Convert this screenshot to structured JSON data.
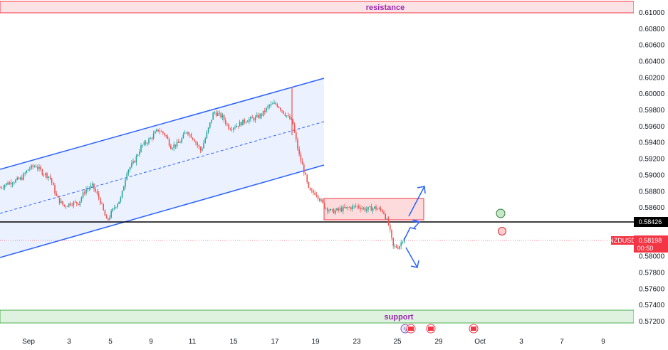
{
  "chart_data": {
    "type": "candlestick",
    "symbol": "NZDUSD",
    "last_price": "0.58198",
    "countdown": "00:50",
    "level_line": "0.58426",
    "y_ticks": [
      "0.61000",
      "0.60800",
      "0.60600",
      "0.60400",
      "0.60200",
      "0.60000",
      "0.59800",
      "0.59600",
      "0.59400",
      "0.59200",
      "0.59000",
      "0.58800",
      "0.58600",
      "0.58400",
      "0.58200",
      "0.58000",
      "0.57800",
      "0.57600",
      "0.57400",
      "0.57200"
    ],
    "x_ticks": [
      "Sep",
      "3",
      "5",
      "9",
      "11",
      "15",
      "17",
      "19",
      "23",
      "25",
      "29",
      "Oct",
      "3",
      "7",
      "9"
    ],
    "zones": {
      "resistance": {
        "label": "resistance",
        "from": 0.6102,
        "to": 0.6086,
        "color": "#f23645"
      },
      "support": {
        "label": "support",
        "from": 0.5732,
        "to": 0.5716,
        "color": "#4caf50"
      }
    },
    "consolidation_box": {
      "from": 0.5872,
      "to": 0.5846,
      "color": "#f23645"
    },
    "channel": {
      "color": "#2962ff"
    },
    "price_path": [
      {
        "x": 0,
        "y": 0.5885
      },
      {
        "x": 10,
        "y": 0.589
      },
      {
        "x": 20,
        "y": 0.5893
      },
      {
        "x": 30,
        "y": 0.5896
      },
      {
        "x": 40,
        "y": 0.5908
      },
      {
        "x": 50,
        "y": 0.5912
      },
      {
        "x": 60,
        "y": 0.5903
      },
      {
        "x": 70,
        "y": 0.5898
      },
      {
        "x": 80,
        "y": 0.5872
      },
      {
        "x": 90,
        "y": 0.5862
      },
      {
        "x": 100,
        "y": 0.5866
      },
      {
        "x": 110,
        "y": 0.5866
      },
      {
        "x": 120,
        "y": 0.5882
      },
      {
        "x": 130,
        "y": 0.5887
      },
      {
        "x": 140,
        "y": 0.587
      },
      {
        "x": 150,
        "y": 0.5843
      },
      {
        "x": 160,
        "y": 0.586
      },
      {
        "x": 170,
        "y": 0.5872
      },
      {
        "x": 178,
        "y": 0.5905
      },
      {
        "x": 188,
        "y": 0.5916
      },
      {
        "x": 198,
        "y": 0.5935
      },
      {
        "x": 210,
        "y": 0.5944
      },
      {
        "x": 222,
        "y": 0.5956
      },
      {
        "x": 232,
        "y": 0.595
      },
      {
        "x": 240,
        "y": 0.5935
      },
      {
        "x": 252,
        "y": 0.594
      },
      {
        "x": 262,
        "y": 0.5955
      },
      {
        "x": 272,
        "y": 0.5945
      },
      {
        "x": 282,
        "y": 0.593
      },
      {
        "x": 290,
        "y": 0.595
      },
      {
        "x": 300,
        "y": 0.5978
      },
      {
        "x": 312,
        "y": 0.5972
      },
      {
        "x": 322,
        "y": 0.5958
      },
      {
        "x": 334,
        "y": 0.5962
      },
      {
        "x": 346,
        "y": 0.5968
      },
      {
        "x": 358,
        "y": 0.597
      },
      {
        "x": 368,
        "y": 0.5975
      },
      {
        "x": 378,
        "y": 0.5986
      },
      {
        "x": 388,
        "y": 0.5988
      },
      {
        "x": 398,
        "y": 0.5978
      },
      {
        "x": 406,
        "y": 0.597
      },
      {
        "x": 411,
        "y": 0.5965
      },
      {
        "x": 414,
        "y": 0.595
      },
      {
        "x": 420,
        "y": 0.5925
      },
      {
        "x": 427,
        "y": 0.5905
      },
      {
        "x": 434,
        "y": 0.588
      },
      {
        "x": 444,
        "y": 0.5878
      },
      {
        "x": 455,
        "y": 0.5862
      },
      {
        "x": 466,
        "y": 0.5855
      },
      {
        "x": 478,
        "y": 0.5858
      },
      {
        "x": 490,
        "y": 0.586
      },
      {
        "x": 502,
        "y": 0.5862
      },
      {
        "x": 514,
        "y": 0.5858
      },
      {
        "x": 526,
        "y": 0.586
      },
      {
        "x": 538,
        "y": 0.5856
      },
      {
        "x": 546,
        "y": 0.5838
      },
      {
        "x": 552,
        "y": 0.5812
      },
      {
        "x": 560,
        "y": 0.5812
      },
      {
        "x": 568,
        "y": 0.5825
      }
    ]
  }
}
